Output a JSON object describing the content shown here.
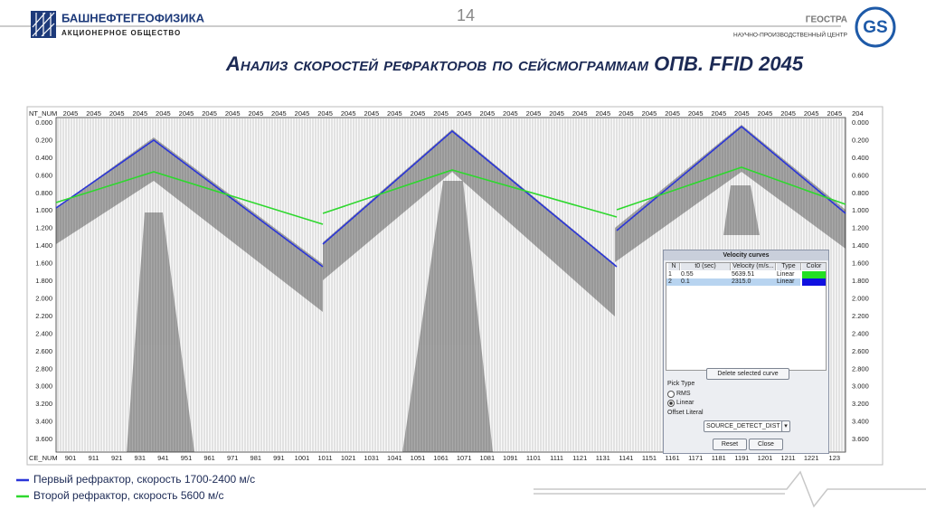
{
  "header": {
    "page_number": "14",
    "left_logo": {
      "name": "БАШНЕФТЕГЕОФИЗИКА",
      "subtitle": "АКЦИОНЕРНОЕ ОБЩЕСТВО"
    },
    "right_logo": {
      "name": "ГЕОСТРА",
      "subtitle": "НАУЧНО-ПРОИЗВОДСТВЕННЫЙ ЦЕНТР",
      "mark": "GS"
    }
  },
  "title": "Анализ скоростей рефракторов по сейсмограммам ОПВ. FFID 2045",
  "seismogram": {
    "top_axis_name": "NT_NUM",
    "top_labels": [
      "2045",
      "2045",
      "2045",
      "2045",
      "2045",
      "2045",
      "2045",
      "2045",
      "2045",
      "2045",
      "2045",
      "2045",
      "2045",
      "2045",
      "2045",
      "2045",
      "2045",
      "2045",
      "2045",
      "2045",
      "2045",
      "2045",
      "2045",
      "2045",
      "2045",
      "2045",
      "2045",
      "2045",
      "2045",
      "2045",
      "2045",
      "2045",
      "2045",
      "2045",
      "204"
    ],
    "time_labels": [
      "0.000",
      "0.200",
      "0.400",
      "0.600",
      "0.800",
      "1.000",
      "1.200",
      "1.400",
      "1.600",
      "1.800",
      "2.000",
      "2.200",
      "2.400",
      "2.600",
      "2.800",
      "3.000",
      "3.200",
      "3.400",
      "3.600"
    ],
    "bottom_axis_name": "CE_NUM",
    "bottom_labels": [
      "901",
      "911",
      "921",
      "931",
      "941",
      "951",
      "961",
      "971",
      "981",
      "991",
      "1001",
      "1011",
      "1021",
      "1031",
      "1041",
      "1051",
      "1061",
      "1071",
      "1081",
      "1091",
      "1101",
      "1111",
      "1121",
      "1131",
      "1141",
      "1151",
      "1161",
      "1171",
      "1181",
      "1191",
      "1201",
      "1211",
      "1221",
      "123"
    ]
  },
  "dialog": {
    "title": "Velocity curves",
    "columns": [
      "N",
      "t0 (sec)",
      "Velocity (m/s...",
      "Type",
      "Color"
    ],
    "rows": [
      [
        "1",
        "0.55",
        "5639.51",
        "Linear"
      ],
      [
        "2",
        "0.1",
        "2315.0",
        "Linear"
      ]
    ],
    "delete_button": "Delete selected curve",
    "pick_type_label": "Pick Type",
    "pick_options": [
      "RMS",
      "Linear"
    ],
    "offset_label": "Offset Literal",
    "offset_value": "SOURCE_DETECT_DIST",
    "reset_button": "Reset",
    "close_button": "Close"
  },
  "legend": [
    "Первый рефрактор, скорость 1700-2400 м/с",
    "Второй рефрактор, скорость 5600 м/с"
  ]
}
